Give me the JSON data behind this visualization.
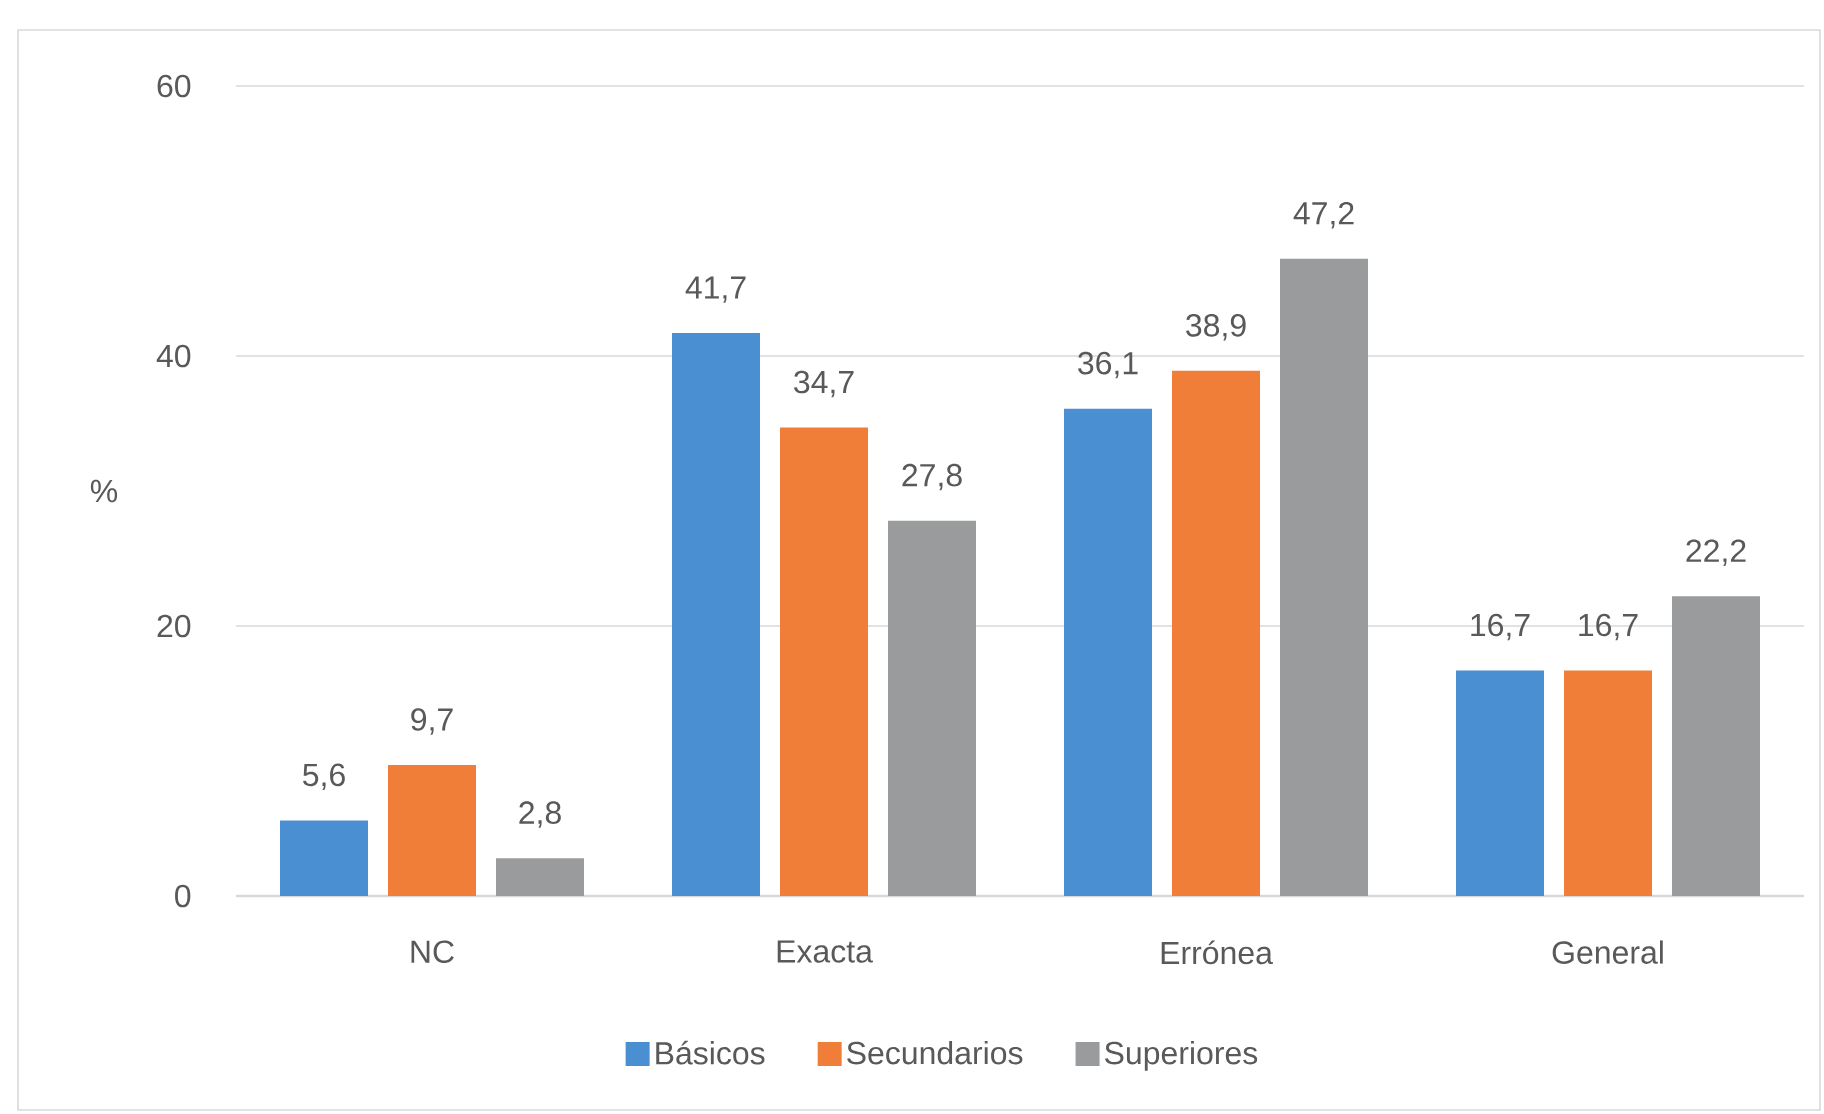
{
  "chart_data": {
    "type": "bar",
    "categories": [
      "NC",
      "Exacta",
      "Errónea",
      "General"
    ],
    "ylabel": "%",
    "ylim": [
      0,
      60
    ],
    "yticks": [
      0,
      20,
      40,
      60
    ],
    "grid": "y",
    "legend": "bottom",
    "series": [
      {
        "name": "Básicos",
        "color": "#4a8fd1",
        "values": [
          5.6,
          41.7,
          36.1,
          16.7
        ],
        "value_labels": [
          "5,6",
          "41,7",
          "36,1",
          "16,7"
        ]
      },
      {
        "name": "Secundarios",
        "color": "#f07e38",
        "values": [
          9.7,
          34.7,
          38.9,
          16.7
        ],
        "value_labels": [
          "9,7",
          "34,7",
          "38,9",
          "16,7"
        ]
      },
      {
        "name": "Superiores",
        "color": "#999b9d",
        "values": [
          2.8,
          27.8,
          47.2,
          22.2
        ],
        "value_labels": [
          "2,8",
          "27,8",
          "47,2",
          "22,2"
        ]
      }
    ]
  }
}
